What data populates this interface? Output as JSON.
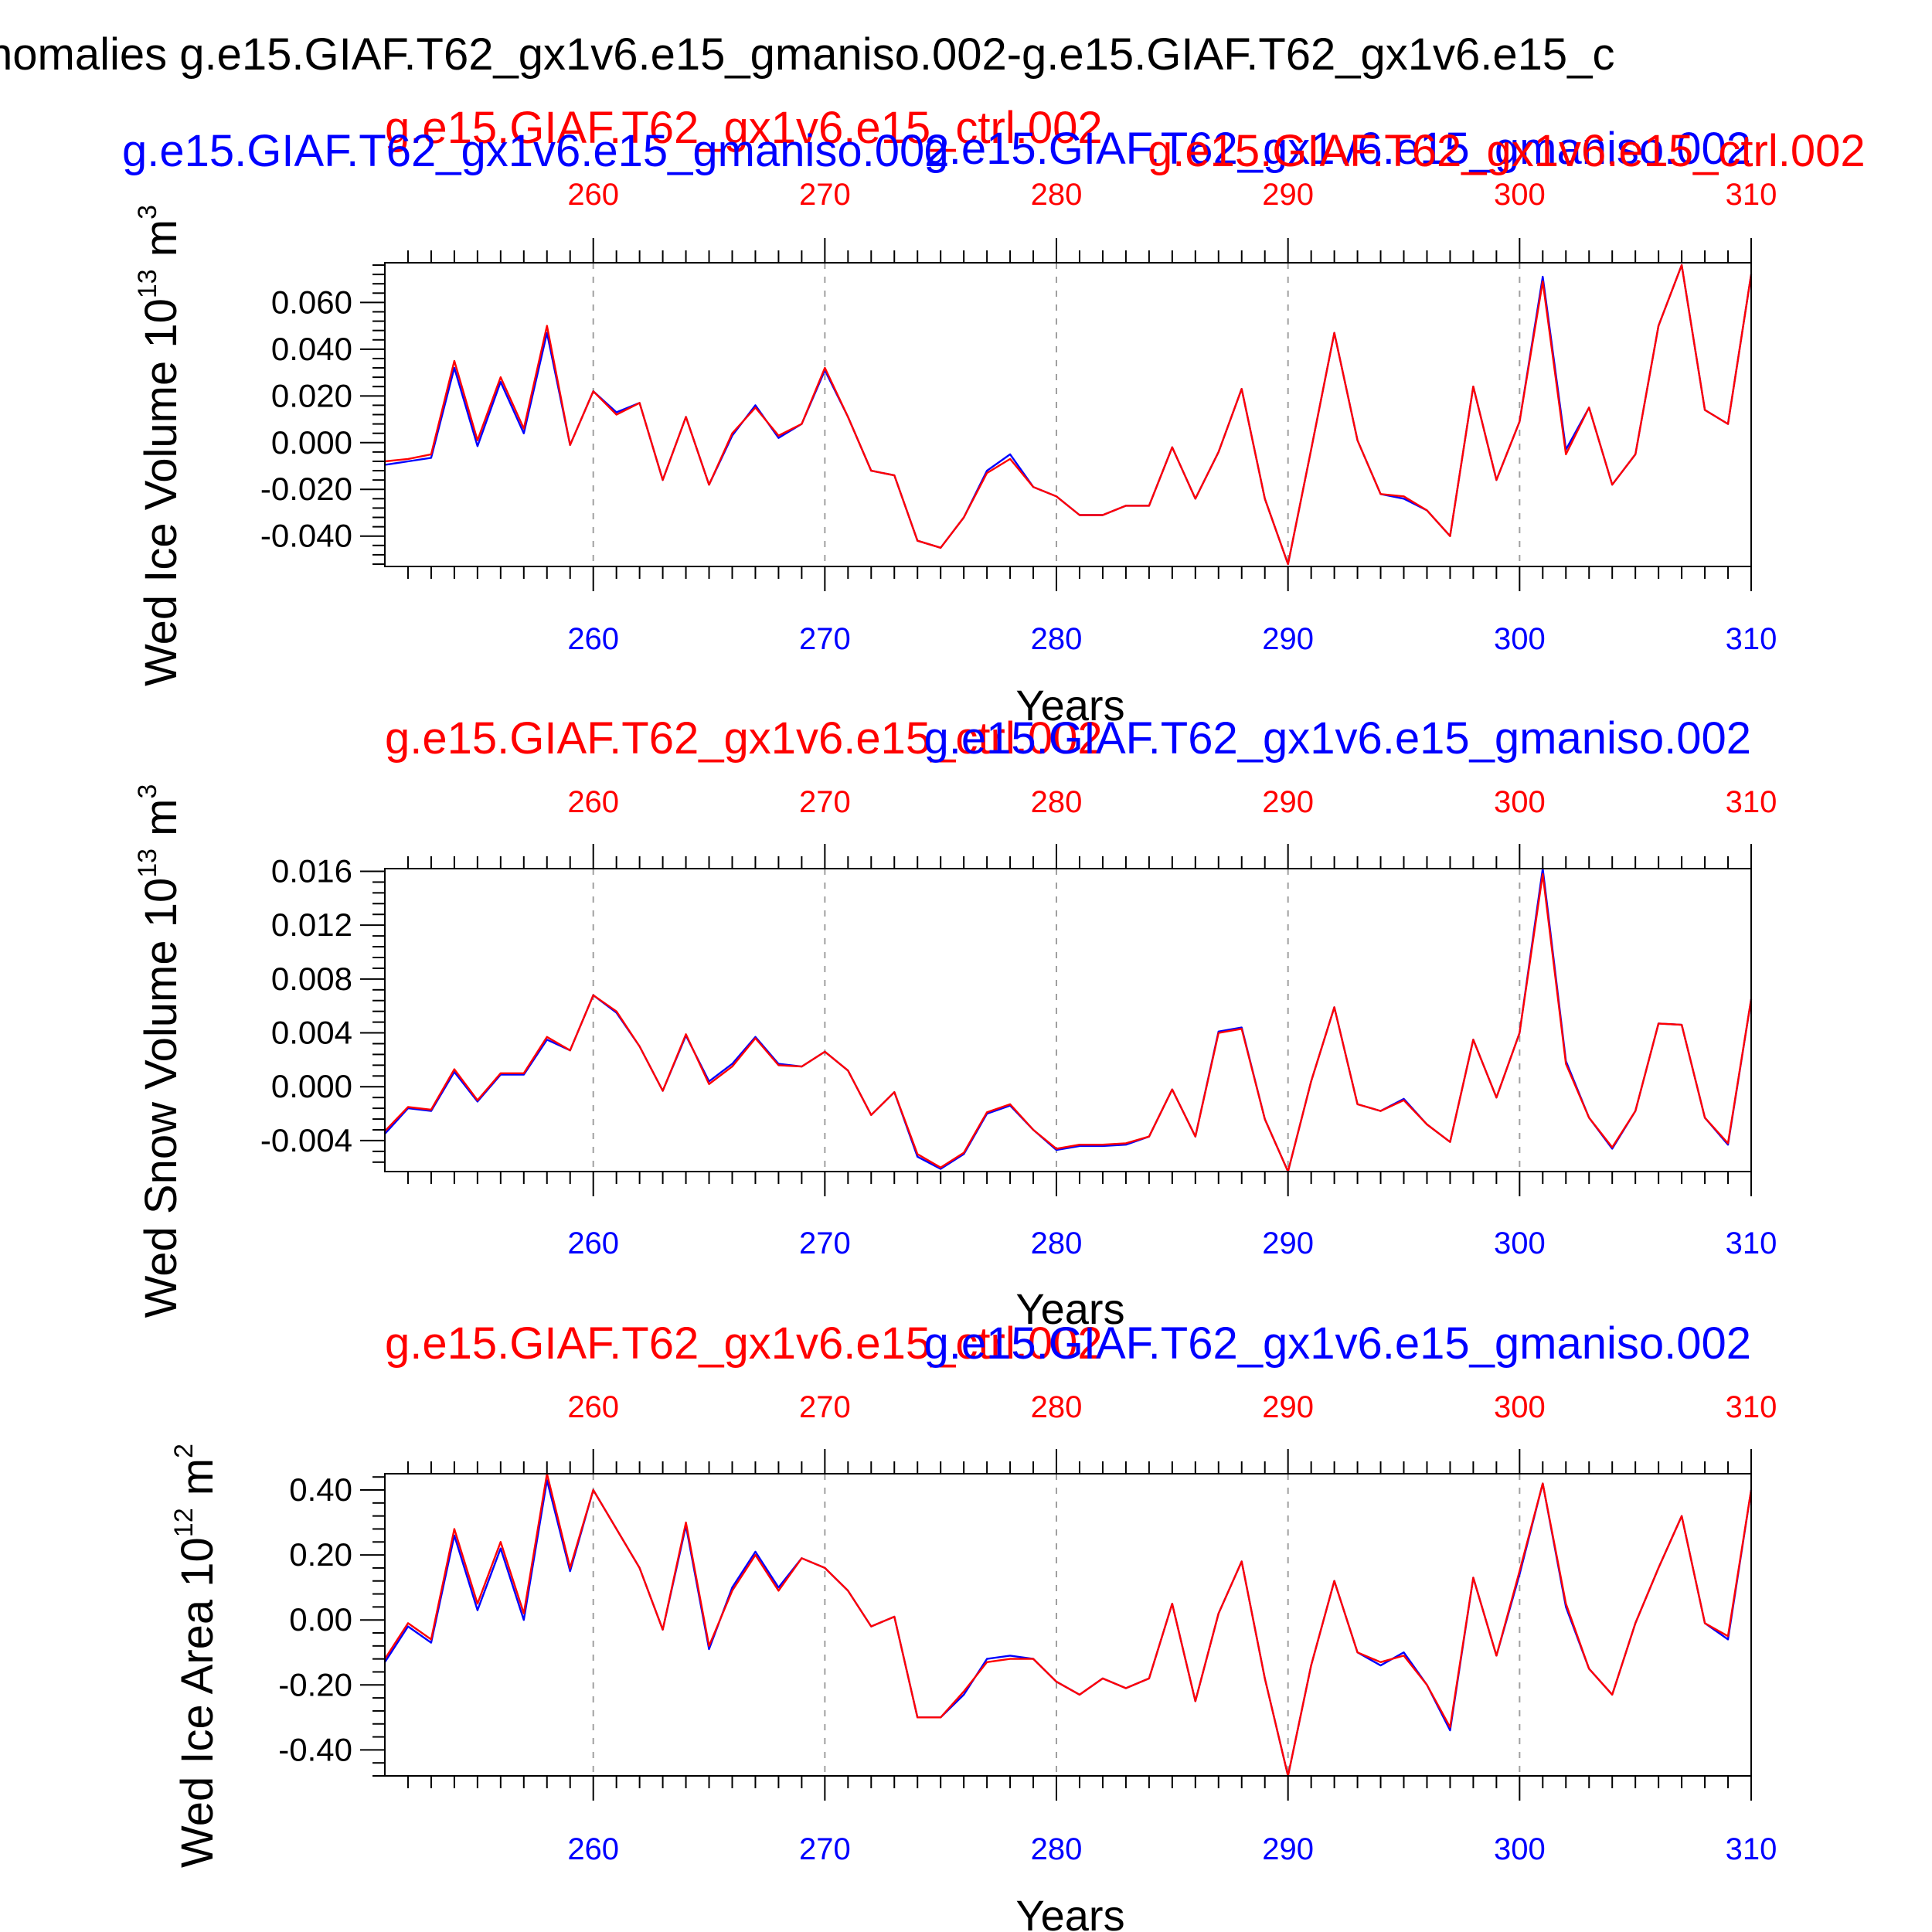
{
  "title": "nomalies g.e15.GIAF.T62_gx1v6.e15_gmaniso.002-g.e15.GIAF.T62_gx1v6.e15_c",
  "colors": {
    "ctrl": "#ff0000",
    "gmaniso": "#0000ff",
    "frame": "#000000",
    "grid": "#a0a0a0"
  },
  "chart_data": [
    {
      "type": "line",
      "ylabel_text": "Wed Ice Volume 10",
      "ylabel_exp": "13",
      "ylabel_unit": " m",
      "ylabel_unit_exp": "3",
      "xlabel": "Years",
      "case_red": "g.e15.GIAF.T62_gx1v6.e15_ctrl.002",
      "case_blue": "g.e15.GIAF.T62_gx1v6.e15_gmaniso.002",
      "extra_red": "g.e15.GIAF.T62_gx1v6.e15_ctrl.002",
      "extra_blue": "g.e15.GIAF.T62_gx1v6.e15_gmaniso.002",
      "xlim": [
        251,
        310
      ],
      "ylim": [
        -0.053,
        0.077
      ],
      "xticks": [
        260,
        270,
        280,
        290,
        300,
        310
      ],
      "xtick_labels": [
        "260",
        "270",
        "280",
        "290",
        "300",
        "310"
      ],
      "yticks": [
        -0.04,
        -0.02,
        0.0,
        0.02,
        0.04,
        0.06
      ],
      "ytick_labels": [
        "-0.040",
        "-0.020",
        "0.000",
        "0.020",
        "0.040",
        "0.060"
      ],
      "grid_x": [
        260,
        270,
        280,
        290,
        300
      ],
      "x": [
        251,
        252,
        253,
        254,
        255,
        256,
        257,
        258,
        259,
        260,
        261,
        262,
        263,
        264,
        265,
        266,
        267,
        268,
        269,
        270,
        271,
        272,
        273,
        274,
        275,
        276,
        277,
        278,
        279,
        280,
        281,
        282,
        283,
        284,
        285,
        286,
        287,
        288,
        289,
        290,
        291,
        292,
        293,
        294,
        295,
        296,
        297,
        298,
        299,
        300,
        301,
        302,
        303,
        304,
        305,
        306,
        307,
        308,
        309,
        310
      ],
      "series": [
        {
          "name": "g.e15.GIAF.T62_gx1v6.e15_gmaniso.002",
          "color": "#0000ff",
          "values": [
            -0.0095,
            -0.008,
            -0.0065,
            0.032,
            -0.0015,
            0.026,
            0.004,
            0.047,
            -0.001,
            0.022,
            0.013,
            0.017,
            -0.016,
            0.011,
            -0.018,
            0.003,
            0.016,
            0.002,
            0.008,
            0.031,
            0.011,
            -0.012,
            -0.014,
            -0.042,
            -0.045,
            -0.032,
            -0.012,
            -0.005,
            -0.019,
            -0.023,
            -0.031,
            -0.031,
            -0.027,
            -0.027,
            -0.002,
            -0.024,
            -0.004,
            0.023,
            -0.024,
            -0.052,
            -0.003,
            0.047,
            0.001,
            -0.022,
            -0.024,
            -0.029,
            -0.04,
            0.024,
            -0.016,
            0.009,
            0.071,
            -0.003,
            0.015,
            -0.018,
            -0.005,
            0.05,
            0.076,
            0.014,
            0.008,
            0.072
          ]
        },
        {
          "name": "g.e15.GIAF.T62_gx1v6.e15_ctrl.002",
          "color": "#ff0000",
          "values": [
            -0.008,
            -0.007,
            -0.005,
            0.035,
            0.001,
            0.028,
            0.006,
            0.05,
            -0.001,
            0.022,
            0.012,
            0.017,
            -0.016,
            0.011,
            -0.018,
            0.004,
            0.015,
            0.003,
            0.008,
            0.032,
            0.011,
            -0.012,
            -0.014,
            -0.042,
            -0.045,
            -0.032,
            -0.013,
            -0.007,
            -0.019,
            -0.023,
            -0.031,
            -0.031,
            -0.027,
            -0.027,
            -0.002,
            -0.024,
            -0.004,
            0.023,
            -0.024,
            -0.052,
            -0.003,
            0.047,
            0.001,
            -0.022,
            -0.023,
            -0.029,
            -0.04,
            0.024,
            -0.016,
            0.009,
            0.069,
            -0.005,
            0.015,
            -0.018,
            -0.005,
            0.05,
            0.076,
            0.014,
            0.008,
            0.072
          ]
        }
      ]
    },
    {
      "type": "line",
      "ylabel_text": "Wed Snow Volume 10",
      "ylabel_exp": "13",
      "ylabel_unit": " m",
      "ylabel_unit_exp": "3",
      "xlabel": "Years",
      "case_red": "g.e15.GIAF.T62_gx1v6.e15_ctrl.002",
      "case_blue": "g.e15.GIAF.T62_gx1v6.e15_gmaniso.002",
      "xlim": [
        251,
        310
      ],
      "ylim": [
        -0.0063,
        0.0162
      ],
      "xticks": [
        260,
        270,
        280,
        290,
        300,
        310
      ],
      "xtick_labels": [
        "260",
        "270",
        "280",
        "290",
        "300",
        "310"
      ],
      "yticks": [
        -0.004,
        0.0,
        0.004,
        0.008,
        0.012,
        0.016
      ],
      "ytick_labels": [
        "-0.004",
        "0.000",
        "0.004",
        "0.008",
        "0.012",
        "0.016"
      ],
      "grid_x": [
        260,
        270,
        280,
        290,
        300
      ],
      "x": [
        251,
        252,
        253,
        254,
        255,
        256,
        257,
        258,
        259,
        260,
        261,
        262,
        263,
        264,
        265,
        266,
        267,
        268,
        269,
        270,
        271,
        272,
        273,
        274,
        275,
        276,
        277,
        278,
        279,
        280,
        281,
        282,
        283,
        284,
        285,
        286,
        287,
        288,
        289,
        290,
        291,
        292,
        293,
        294,
        295,
        296,
        297,
        298,
        299,
        300,
        301,
        302,
        303,
        304,
        305,
        306,
        307,
        308,
        309,
        310
      ],
      "series": [
        {
          "name": "g.e15.GIAF.T62_gx1v6.e15_gmaniso.002",
          "color": "#0000ff",
          "values": [
            -0.0035,
            -0.0016,
            -0.0018,
            0.0011,
            -0.0011,
            0.0009,
            0.0009,
            0.0035,
            0.0027,
            0.0068,
            0.0055,
            0.003,
            -0.0003,
            0.0038,
            0.0004,
            0.0017,
            0.0037,
            0.0017,
            0.0015,
            0.0026,
            0.0012,
            -0.0021,
            -0.0004,
            -0.0052,
            -0.0061,
            -0.005,
            -0.002,
            -0.0014,
            -0.0032,
            -0.0047,
            -0.0044,
            -0.0044,
            -0.0043,
            -0.0037,
            -0.0002,
            -0.0037,
            0.0041,
            0.0044,
            -0.0024,
            -0.0063,
            0.0004,
            0.0059,
            -0.0013,
            -0.0018,
            -0.0009,
            -0.0028,
            -0.0041,
            0.0035,
            -0.0008,
            0.004,
            0.0162,
            0.0019,
            -0.0023,
            -0.0046,
            -0.0018,
            0.0047,
            0.0046,
            -0.0023,
            -0.0043,
            0.0065
          ]
        },
        {
          "name": "g.e15.GIAF.T62_gx1v6.e15_ctrl.002",
          "color": "#ff0000",
          "values": [
            -0.0033,
            -0.0015,
            -0.0017,
            0.0013,
            -0.001,
            0.001,
            0.001,
            0.0037,
            0.0027,
            0.0068,
            0.0056,
            0.003,
            -0.0003,
            0.0039,
            0.0002,
            0.0015,
            0.0036,
            0.0016,
            0.0015,
            0.0026,
            0.0012,
            -0.0021,
            -0.0004,
            -0.005,
            -0.006,
            -0.0049,
            -0.0019,
            -0.0013,
            -0.0032,
            -0.0046,
            -0.0043,
            -0.0043,
            -0.0042,
            -0.0037,
            -0.0002,
            -0.0037,
            0.004,
            0.0043,
            -0.0024,
            -0.0063,
            0.0004,
            0.0059,
            -0.0013,
            -0.0018,
            -0.001,
            -0.0028,
            -0.0041,
            0.0035,
            -0.0008,
            0.004,
            0.0158,
            0.0017,
            -0.0023,
            -0.0045,
            -0.0018,
            0.0047,
            0.0046,
            -0.0023,
            -0.0042,
            0.0065
          ]
        }
      ]
    },
    {
      "type": "line",
      "ylabel_text": "Wed Ice Area 10",
      "ylabel_exp": "12",
      "ylabel_unit": " m",
      "ylabel_unit_exp": "2",
      "xlabel": "Years",
      "case_red": "g.e15.GIAF.T62_gx1v6.e15_ctrl.002",
      "case_blue": "g.e15.GIAF.T62_gx1v6.e15_gmaniso.002",
      "xlim": [
        251,
        310
      ],
      "ylim": [
        -0.48,
        0.45
      ],
      "xticks": [
        260,
        270,
        280,
        290,
        300,
        310
      ],
      "xtick_labels": [
        "260",
        "270",
        "280",
        "290",
        "300",
        "310"
      ],
      "yticks": [
        -0.4,
        -0.2,
        0.0,
        0.2,
        0.4
      ],
      "ytick_labels": [
        "-0.40",
        "-0.20",
        "0.00",
        "0.20",
        "0.40"
      ],
      "grid_x": [
        260,
        270,
        280,
        290,
        300
      ],
      "x": [
        251,
        252,
        253,
        254,
        255,
        256,
        257,
        258,
        259,
        260,
        261,
        262,
        263,
        264,
        265,
        266,
        267,
        268,
        269,
        270,
        271,
        272,
        273,
        274,
        275,
        276,
        277,
        278,
        279,
        280,
        281,
        282,
        283,
        284,
        285,
        286,
        287,
        288,
        289,
        290,
        291,
        292,
        293,
        294,
        295,
        296,
        297,
        298,
        299,
        300,
        301,
        302,
        303,
        304,
        305,
        306,
        307,
        308,
        309,
        310
      ],
      "series": [
        {
          "name": "g.e15.GIAF.T62_gx1v6.e15_gmaniso.002",
          "color": "#0000ff",
          "values": [
            -0.13,
            -0.02,
            -0.07,
            0.26,
            0.03,
            0.22,
            0.0,
            0.43,
            0.15,
            0.4,
            0.28,
            0.16,
            -0.03,
            0.29,
            -0.09,
            0.1,
            0.21,
            0.1,
            0.19,
            0.16,
            0.09,
            -0.02,
            0.01,
            -0.3,
            -0.3,
            -0.23,
            -0.12,
            -0.11,
            -0.12,
            -0.19,
            -0.23,
            -0.18,
            -0.21,
            -0.18,
            0.05,
            -0.25,
            0.02,
            0.18,
            -0.18,
            -0.48,
            -0.14,
            0.12,
            -0.1,
            -0.14,
            -0.1,
            -0.2,
            -0.34,
            0.13,
            -0.11,
            0.14,
            0.42,
            0.04,
            -0.15,
            -0.23,
            -0.01,
            0.16,
            0.32,
            -0.01,
            -0.06,
            0.4
          ]
        },
        {
          "name": "g.e15.GIAF.T62_gx1v6.e15_ctrl.002",
          "color": "#ff0000",
          "values": [
            -0.12,
            -0.01,
            -0.06,
            0.28,
            0.05,
            0.24,
            0.02,
            0.45,
            0.16,
            0.4,
            0.28,
            0.16,
            -0.03,
            0.3,
            -0.08,
            0.09,
            0.2,
            0.09,
            0.19,
            0.16,
            0.09,
            -0.02,
            0.01,
            -0.3,
            -0.3,
            -0.22,
            -0.13,
            -0.12,
            -0.12,
            -0.19,
            -0.23,
            -0.18,
            -0.21,
            -0.18,
            0.05,
            -0.25,
            0.02,
            0.18,
            -0.18,
            -0.48,
            -0.14,
            0.12,
            -0.1,
            -0.13,
            -0.11,
            -0.2,
            -0.33,
            0.13,
            -0.11,
            0.15,
            0.42,
            0.05,
            -0.15,
            -0.23,
            -0.01,
            0.16,
            0.32,
            -0.01,
            -0.05,
            0.4
          ]
        }
      ]
    }
  ]
}
